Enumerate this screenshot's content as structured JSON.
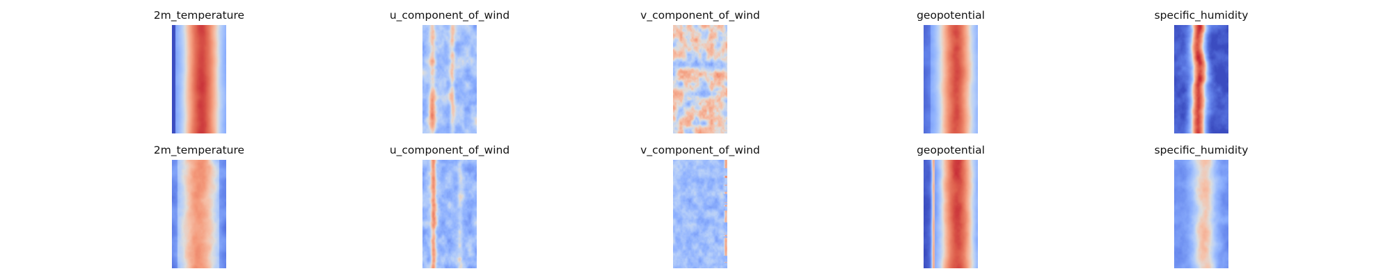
{
  "figure": {
    "colormap": "coolwarm",
    "colors": {
      "cold": "#3b4cc0",
      "neutral": "#dddddd",
      "warm": "#b40426"
    },
    "rows": [
      {
        "panels": [
          {
            "title": "2m_temperature",
            "pattern": "temp_a"
          },
          {
            "title": "u_component_of_wind",
            "pattern": "uwind_a"
          },
          {
            "title": "v_component_of_wind",
            "pattern": "vwind_a"
          },
          {
            "title": "geopotential",
            "pattern": "geo_a"
          },
          {
            "title": "specific_humidity",
            "pattern": "hum_a"
          }
        ]
      },
      {
        "panels": [
          {
            "title": "2m_temperature",
            "pattern": "temp_b"
          },
          {
            "title": "u_component_of_wind",
            "pattern": "uwind_b"
          },
          {
            "title": "v_component_of_wind",
            "pattern": "vwind_b"
          },
          {
            "title": "geopotential",
            "pattern": "geo_b"
          },
          {
            "title": "specific_humidity",
            "pattern": "hum_b"
          }
        ]
      }
    ]
  }
}
